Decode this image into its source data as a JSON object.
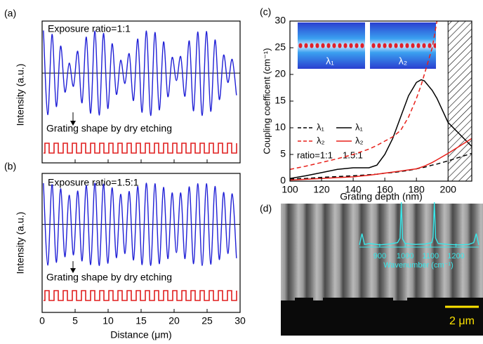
{
  "chart_data": [
    {
      "type": "line",
      "label": "(a)",
      "annotation": "Exposure ratio=1:1",
      "note": "Grating shape by dry etching",
      "ylabel": "Intensity (a.u.)",
      "color": "#1f1fd6",
      "smooth": true,
      "xlim": [
        0,
        30
      ],
      "ylim": [
        -1.9,
        1.1
      ],
      "x": [
        0.2,
        0.85,
        1.5,
        2.15,
        2.8,
        3.45,
        4.1,
        4.75,
        5.4,
        6.05,
        6.7,
        7.35,
        8,
        8.65,
        9.3,
        9.95,
        10.6,
        11.25,
        11.9,
        12.55,
        13.2,
        13.85,
        14.5,
        15.15,
        15.8,
        16.45,
        17.1,
        17.75,
        18.4,
        19.05,
        19.7,
        20.35,
        21,
        21.65,
        22.3,
        22.95,
        23.6,
        24.25,
        24.9,
        25.55,
        26.2,
        26.85,
        27.5,
        28.15,
        28.8,
        29.45
      ],
      "values": [
        0.9,
        -0.88,
        0.82,
        -0.71,
        0.57,
        -0.4,
        0.21,
        -0.28,
        0.46,
        -0.63,
        0.76,
        -0.85,
        0.89,
        -0.89,
        0.84,
        -0.75,
        0.62,
        -0.45,
        0.27,
        -0.22,
        0.41,
        -0.58,
        0.72,
        -0.83,
        0.89,
        -0.9,
        0.86,
        -0.78,
        0.66,
        -0.5,
        0.33,
        -0.16,
        0.35,
        -0.49,
        0.68,
        -0.8,
        0.87,
        -0.9,
        0.88,
        -0.81,
        0.7,
        -0.56,
        0.38,
        -0.2,
        0.29,
        -0.47
      ]
    },
    {
      "type": "line",
      "label": "(b)",
      "annotation": "Exposure ratio=1.5:1",
      "note": "Grating shape by dry etching",
      "ylabel": "Intensity (a.u.)",
      "xlabel": "Distance (μm)",
      "color": "#1f1fd6",
      "smooth": true,
      "xlim": [
        0,
        30
      ],
      "ylim": [
        -1.9,
        1.1
      ],
      "xticks": [
        0,
        5,
        10,
        15,
        20,
        25,
        30
      ],
      "x": [
        0.2,
        0.85,
        1.5,
        2.15,
        2.8,
        3.45,
        4.1,
        4.75,
        5.4,
        6.05,
        6.7,
        7.35,
        8,
        8.65,
        9.3,
        9.95,
        10.6,
        11.25,
        11.9,
        12.55,
        13.2,
        13.85,
        14.5,
        15.15,
        15.8,
        16.45,
        17.1,
        17.75,
        18.4,
        19.05,
        19.7,
        20.35,
        21,
        21.65,
        22.3,
        22.95,
        23.6,
        24.25,
        24.9,
        25.55,
        26.2,
        26.85,
        27.5,
        28.15,
        28.8,
        29.45
      ],
      "values": [
        0.89,
        -0.88,
        0.86,
        -0.82,
        0.77,
        -0.7,
        0.63,
        -0.66,
        0.72,
        -0.79,
        0.84,
        -0.87,
        0.89,
        -0.89,
        0.87,
        -0.84,
        0.79,
        -0.72,
        0.65,
        -0.63,
        0.71,
        -0.77,
        0.82,
        -0.87,
        0.89,
        -0.89,
        0.88,
        -0.85,
        0.8,
        -0.74,
        0.68,
        -0.61,
        0.68,
        -0.74,
        0.81,
        -0.85,
        0.88,
        -0.89,
        0.88,
        -0.86,
        0.82,
        -0.76,
        0.69,
        -0.63,
        0.66,
        -0.73
      ]
    },
    {
      "type": "line",
      "label": "(c)",
      "xlabel": "Grating depth (nm)",
      "ylabel": "Coupling coefficent (cm⁻¹)",
      "xlim": [
        100,
        215
      ],
      "ylim": [
        0,
        30
      ],
      "xticks": [
        100,
        120,
        140,
        160,
        180,
        200
      ],
      "yticks": [
        0,
        5,
        10,
        15,
        20,
        25,
        30
      ],
      "hatch_xrange": [
        200,
        215
      ],
      "inset_labels": [
        "λ₁",
        "λ₂"
      ],
      "annotations": [
        "ratio=1:1",
        "1.5:1"
      ],
      "x": [
        100,
        110,
        120,
        130,
        140,
        150,
        155,
        160,
        165,
        170,
        175,
        180,
        183,
        185,
        190,
        193,
        200,
        215
      ],
      "series": [
        {
          "name": "λ₁",
          "color": "#000000",
          "dash": "dashed",
          "values": [
            0.4,
            0.5,
            0.7,
            0.85,
            1.0,
            1.2,
            1.3,
            1.5,
            1.6,
            1.8,
            2.0,
            2.3,
            2.5,
            2.6,
            3.0,
            3.2,
            3.8,
            5.2
          ]
        },
        {
          "name": "λ₁",
          "color": "#000000",
          "dash": "solid",
          "values": [
            0.5,
            1.0,
            1.6,
            2.2,
            2.5,
            2.5,
            3.0,
            5.0,
            8.0,
            12.0,
            16.0,
            18.5,
            19.0,
            18.8,
            17.0,
            15.5,
            11.0,
            6.5
          ]
        },
        {
          "name": "λ₂",
          "color": "#e8201a",
          "dash": "dashed",
          "values": [
            2.2,
            2.8,
            3.5,
            4.2,
            5.0,
            6.0,
            6.7,
            7.5,
            8.3,
            9.5,
            12.0,
            15.5,
            18.0,
            20.0,
            25.0,
            30.0,
            null,
            null
          ]
        },
        {
          "name": "λ₂",
          "color": "#e8201a",
          "dash": "solid",
          "values": [
            0.2,
            0.35,
            0.5,
            0.65,
            0.8,
            1.1,
            1.3,
            1.5,
            1.7,
            1.9,
            2.1,
            2.3,
            2.6,
            2.8,
            3.5,
            4.0,
            5.2,
            8.0
          ]
        }
      ]
    },
    {
      "type": "line",
      "label": "(d)",
      "xlabel": "Wavenumber (cm⁻¹)",
      "scale_bar": "2 μm",
      "color": "#38e8ea",
      "smooth": false,
      "xlim": [
        820,
        1290
      ],
      "ylim": [
        0,
        1
      ],
      "xticks": [
        900,
        1000,
        1100,
        1200
      ],
      "x": [
        820,
        830,
        840,
        860,
        900,
        940,
        970,
        980,
        985,
        990,
        1000,
        1040,
        1080,
        1105,
        1110,
        1115,
        1120,
        1130,
        1170,
        1210,
        1250,
        1270,
        1280,
        1290
      ],
      "values": [
        0.05,
        0.3,
        0.06,
        0.08,
        0.05,
        0.07,
        0.1,
        0.2,
        1.0,
        0.18,
        0.08,
        0.06,
        0.07,
        0.1,
        0.22,
        1.0,
        0.2,
        0.08,
        0.06,
        0.05,
        0.06,
        0.1,
        0.3,
        0.05
      ]
    }
  ]
}
